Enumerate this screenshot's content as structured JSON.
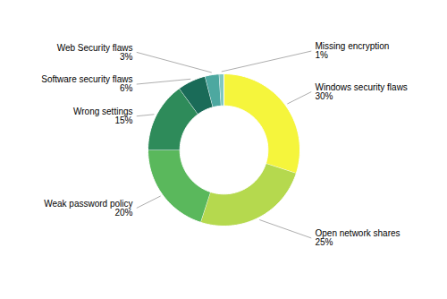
{
  "chart_data": {
    "type": "donut",
    "categories": [
      "Windows security flaws",
      "Open network shares",
      "Weak password policy",
      "Wrong settings",
      "Software security flaws",
      "Web Security flaws",
      "Missing encryption"
    ],
    "values": [
      30,
      25,
      20,
      15,
      6,
      3,
      1
    ],
    "value_labels": [
      "30%",
      "25%",
      "20%",
      "15%",
      "6%",
      "3%",
      "1%"
    ],
    "colors": [
      "#f5f53c",
      "#b5d94e",
      "#5ab85c",
      "#2e8b5a",
      "#1a6b58",
      "#4da8a0",
      "#80c8c0"
    ],
    "data_labels": true
  }
}
